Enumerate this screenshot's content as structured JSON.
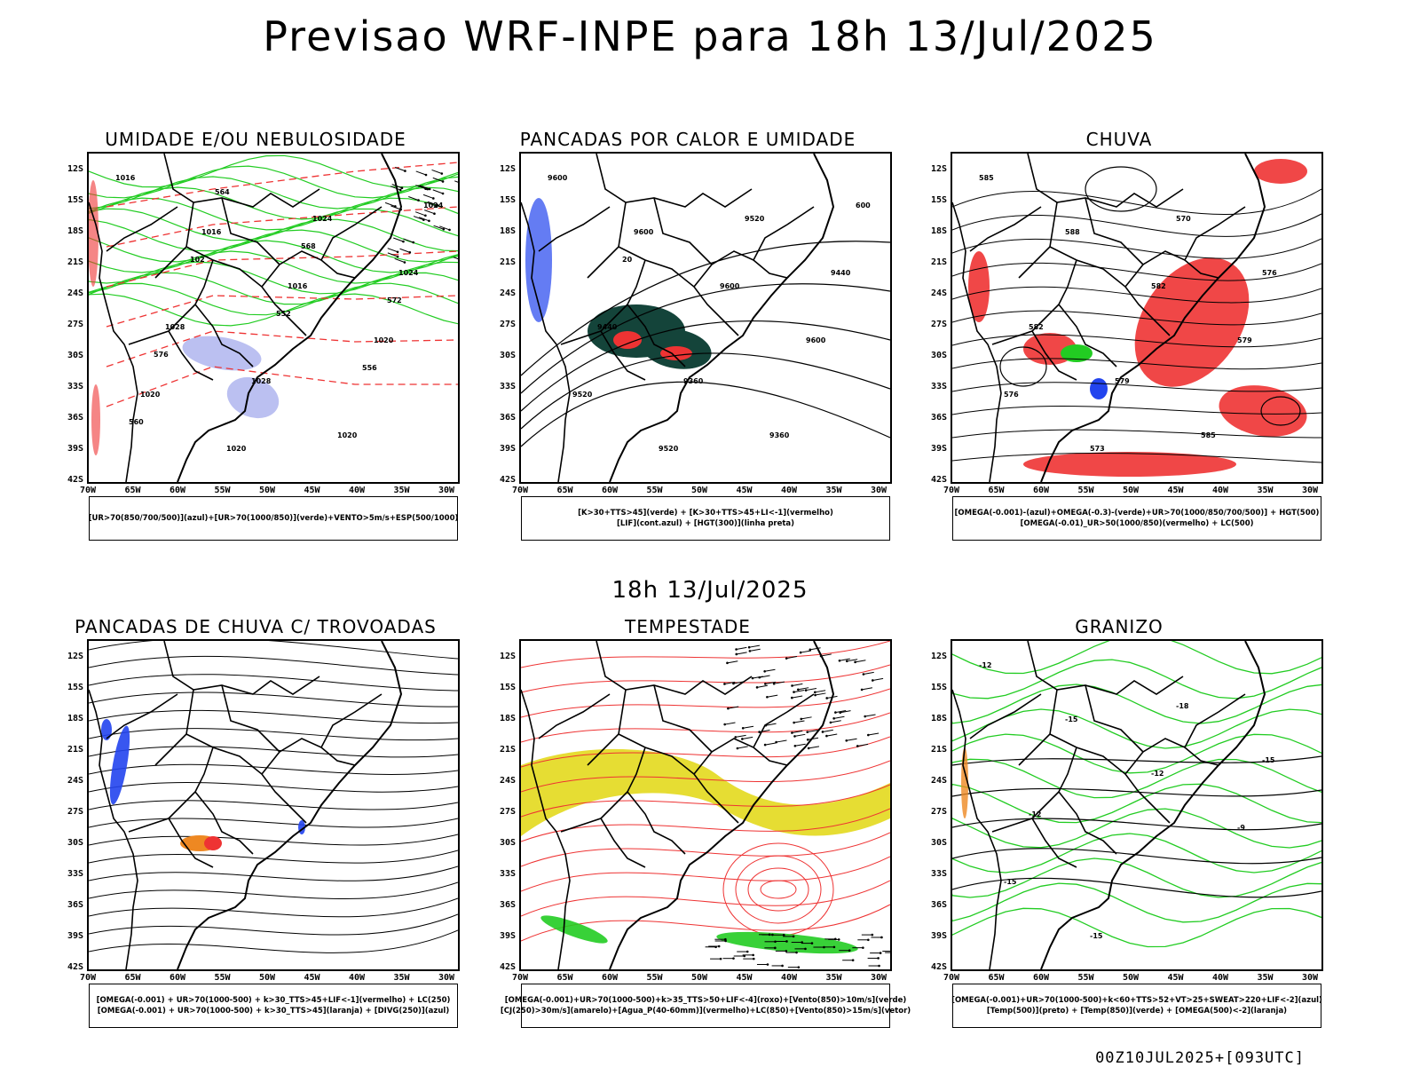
{
  "title": "Previsao WRF-INPE  para 18h 13/Jul/2025",
  "mid_date": "18h 13/Jul/2025",
  "footer": "00Z10JUL2025+[093UTC]",
  "lat_labels": [
    "12S",
    "15S",
    "18S",
    "21S",
    "24S",
    "27S",
    "30S",
    "33S",
    "36S",
    "39S",
    "42S"
  ],
  "lon_labels": [
    "70W",
    "65W",
    "60W",
    "55W",
    "50W",
    "45W",
    "40W",
    "35W",
    "30W"
  ],
  "colors": {
    "green": "#22cc22",
    "red": "#ee3333",
    "blue": "#2244ee",
    "lavender": "#aab0ee",
    "darkgreen": "#14443a",
    "yellow": "#e6dd33",
    "orange": "#ee8822"
  },
  "panels": [
    {
      "title": "UMIDADE E/OU NEBULOSIDADE",
      "legend": [
        "[UR>70(850/700/500)](azul)+[UR>70(1000/850)](verde)+VENTO>5m/s+ESP(500/1000)"
      ],
      "contours": [
        "1016",
        "1016",
        "1016",
        "1020",
        "1020",
        "1020",
        "1024",
        "1024",
        "1028",
        "1028",
        "1020",
        "1024",
        "102",
        "552",
        "556",
        "560",
        "564",
        "568",
        "572",
        "576"
      ]
    },
    {
      "title": "PANCADAS POR CALOR E UMIDADE",
      "legend": [
        "[K>30+TTS>45](verde) + [K>30+TTS>45+LI<-1](vermelho)",
        "[LIF](cont.azul) + [HGT(300)](linha preta)"
      ],
      "contours": [
        "9600",
        "9600",
        "9600",
        "9600",
        "9520",
        "9520",
        "9520",
        "9440",
        "9440",
        "9360",
        "9360",
        "600",
        "20"
      ]
    },
    {
      "title": "CHUVA",
      "legend": [
        "[OMEGA(-0.001)-(azul)+OMEGA(-0.3)-(verde)+UR>70(1000/850/700/500)] + HGT(500)",
        "[OMEGA(-0.01)_UR>50(1000/850)(vermelho) + LC(500)"
      ],
      "contours": [
        "585",
        "588",
        "582",
        "579",
        "576",
        "573",
        "570",
        "576",
        "582",
        "579",
        "585"
      ]
    },
    {
      "title": "PANCADAS DE CHUVA C/ TROVOADAS",
      "legend": [
        "[OMEGA(-0.001) + UR>70(1000-500) + k>30_TTS>45+LIF<-1](vermelho) + LC(250)",
        "[OMEGA(-0.001) + UR>70(1000-500) + k>30_TTS>45](laranja) + [DIVG(250)](azul)"
      ],
      "contours": []
    },
    {
      "title": "TEMPESTADE",
      "legend": [
        "[OMEGA(-0.001)+UR>70(1000-500)+k>35_TTS>50+LIF<-4](roxo)+[Vento(850)>10m/s](verde)",
        "[CJ(250)>30m/s](amarelo)+[Agua_P(40-60mm)](vermelho)+LC(850)+[Vento(850)>15m/s](vetor)"
      ],
      "contours": []
    },
    {
      "title": "GRANIZO",
      "legend": [
        "[OMEGA(-0.001)+UR>70(1000-500)+k<60+TTS>52+VT>25+SWEAT>220+LIF<-2](azul)",
        "[Temp(500)](preto) + [Temp(850)](verde) + [OMEGA(500)<-2](laranja)"
      ],
      "contours": [
        "-12",
        "-15",
        "-12",
        "-9",
        "-15",
        "-15",
        "-18",
        "-15",
        "-12"
      ]
    }
  ]
}
